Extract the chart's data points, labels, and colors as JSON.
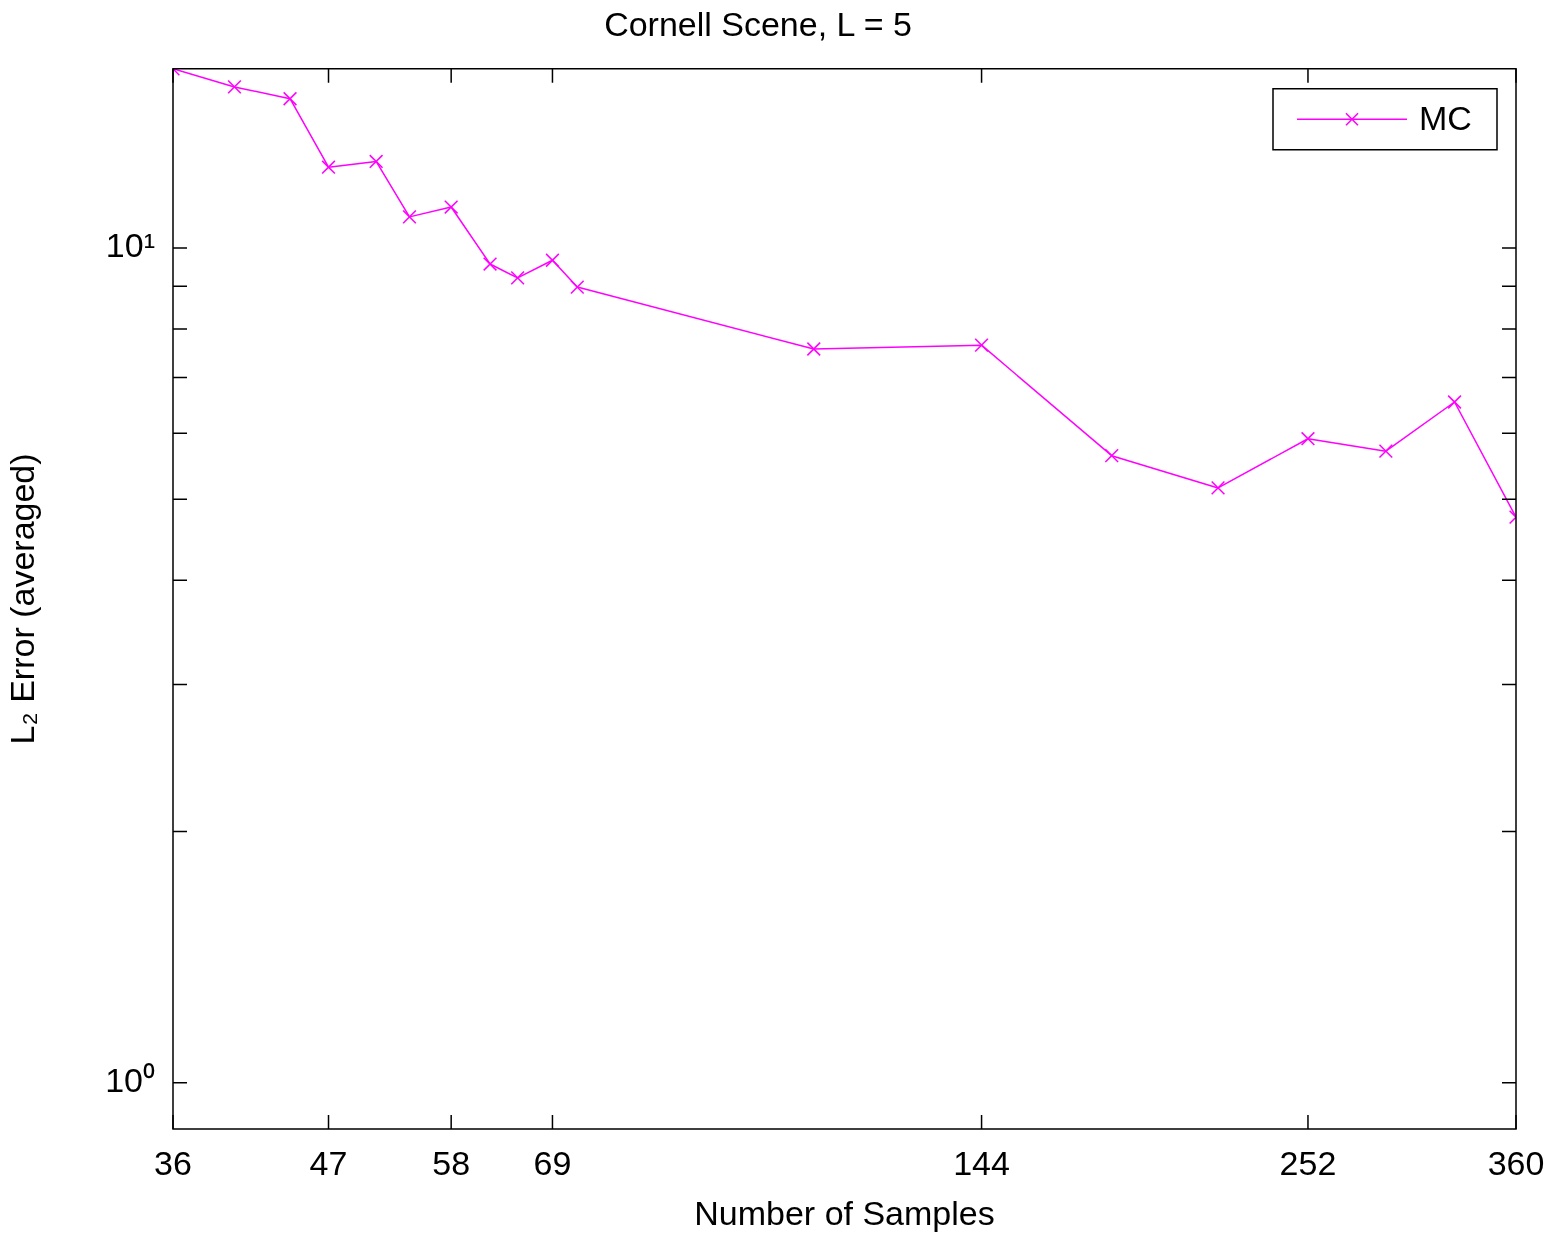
{
  "chart_data": {
    "type": "line",
    "title": "Cornell Scene, L = 5",
    "xlabel": "Number of Samples",
    "ylabel": "L₂ Error (averaged)",
    "x": [
      36,
      40,
      44,
      47,
      51,
      54,
      58,
      62,
      65,
      69,
      72,
      108,
      144,
      180,
      216,
      252,
      288,
      324,
      360
    ],
    "series": [
      {
        "name": "MC",
        "color": "#ff00ff",
        "values": [
          16.4,
          15.6,
          15.1,
          12.5,
          12.7,
          10.9,
          11.2,
          9.57,
          9.21,
          9.67,
          8.98,
          7.57,
          7.65,
          5.64,
          5.16,
          5.91,
          5.71,
          6.54,
          4.76
        ]
      }
    ],
    "log": "xy",
    "xlim": [
      36,
      360
    ],
    "ylim": [
      0.88,
      16.4
    ],
    "xticks": [
      36,
      47,
      58,
      69,
      144,
      252,
      360
    ],
    "yticks": [
      {
        "value": 1,
        "label": "10⁰"
      },
      {
        "value": 2,
        "label": null
      },
      {
        "value": 3,
        "label": null
      },
      {
        "value": 4,
        "label": null
      },
      {
        "value": 5,
        "label": null
      },
      {
        "value": 6,
        "label": null
      },
      {
        "value": 7,
        "label": null
      },
      {
        "value": 8,
        "label": null
      },
      {
        "value": 9,
        "label": null
      },
      {
        "value": 10,
        "label": "10¹"
      }
    ],
    "legend": "top right",
    "marker": "cross",
    "line_style": "solid"
  }
}
